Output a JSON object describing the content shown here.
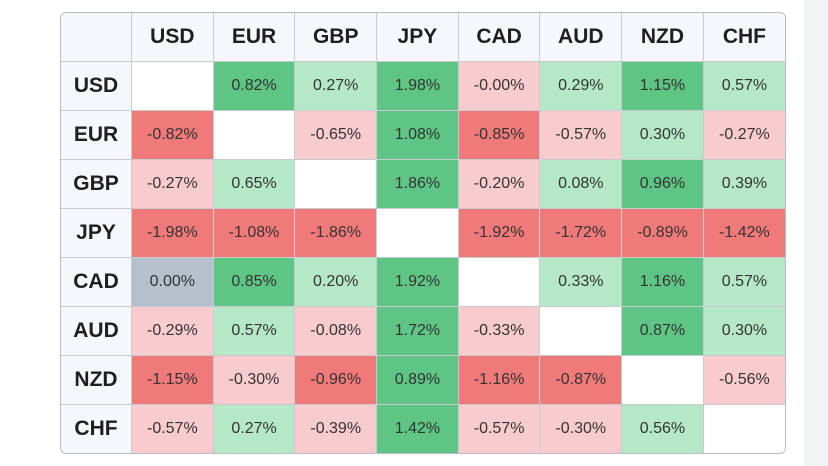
{
  "table": {
    "columns": [
      "USD",
      "EUR",
      "GBP",
      "JPY",
      "CAD",
      "AUD",
      "NZD",
      "CHF"
    ],
    "rows": [
      {
        "label": "USD",
        "cells": [
          null,
          "0.82%",
          "0.27%",
          "1.98%",
          "-0.00%",
          "0.29%",
          "1.15%",
          "0.57%"
        ]
      },
      {
        "label": "EUR",
        "cells": [
          "-0.82%",
          null,
          "-0.65%",
          "1.08%",
          "-0.85%",
          "-0.57%",
          "0.30%",
          "-0.27%"
        ]
      },
      {
        "label": "GBP",
        "cells": [
          "-0.27%",
          "0.65%",
          null,
          "1.86%",
          "-0.20%",
          "0.08%",
          "0.96%",
          "0.39%"
        ]
      },
      {
        "label": "JPY",
        "cells": [
          "-1.98%",
          "-1.08%",
          "-1.86%",
          null,
          "-1.92%",
          "-1.72%",
          "-0.89%",
          "-1.42%"
        ]
      },
      {
        "label": "CAD",
        "cells": [
          "0.00%",
          "0.85%",
          "0.20%",
          "1.92%",
          null,
          "0.33%",
          "1.16%",
          "0.57%"
        ]
      },
      {
        "label": "AUD",
        "cells": [
          "-0.29%",
          "0.57%",
          "-0.08%",
          "1.72%",
          "-0.33%",
          null,
          "0.87%",
          "0.30%"
        ]
      },
      {
        "label": "NZD",
        "cells": [
          "-1.15%",
          "-0.30%",
          "-0.96%",
          "0.89%",
          "-1.16%",
          "-0.87%",
          null,
          "-0.56%"
        ]
      },
      {
        "label": "CHF",
        "cells": [
          "-0.57%",
          "0.27%",
          "-0.39%",
          "1.42%",
          "-0.57%",
          "-0.30%",
          "0.56%",
          null
        ]
      }
    ]
  }
}
